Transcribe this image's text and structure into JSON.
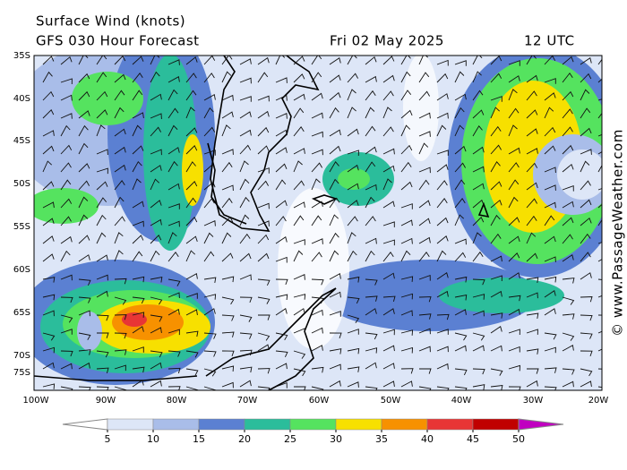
{
  "header": {
    "title": "Surface Wind (knots)",
    "forecast": "GFS 030 Hour Forecast",
    "date": "Fri 02 May 2025",
    "time": "12 UTC"
  },
  "map": {
    "lat_labels": [
      "35S",
      "40S",
      "45S",
      "50S",
      "55S",
      "60S",
      "65S",
      "70S",
      "75S"
    ],
    "lon_labels": [
      "100W",
      "90W",
      "80W",
      "70W",
      "60W",
      "50W",
      "40W",
      "30W",
      "20W"
    ]
  },
  "colorbar": {
    "ticks": [
      5,
      10,
      15,
      20,
      25,
      30,
      35,
      40,
      45,
      50
    ],
    "colors": [
      "#ffffff",
      "#dde6f7",
      "#a9bde9",
      "#5b80d2",
      "#2bbd9b",
      "#55e35f",
      "#f7e000",
      "#f79100",
      "#e83535",
      "#c00000",
      "#c000c0"
    ]
  },
  "credit": "© www.PassageWeather.com"
}
